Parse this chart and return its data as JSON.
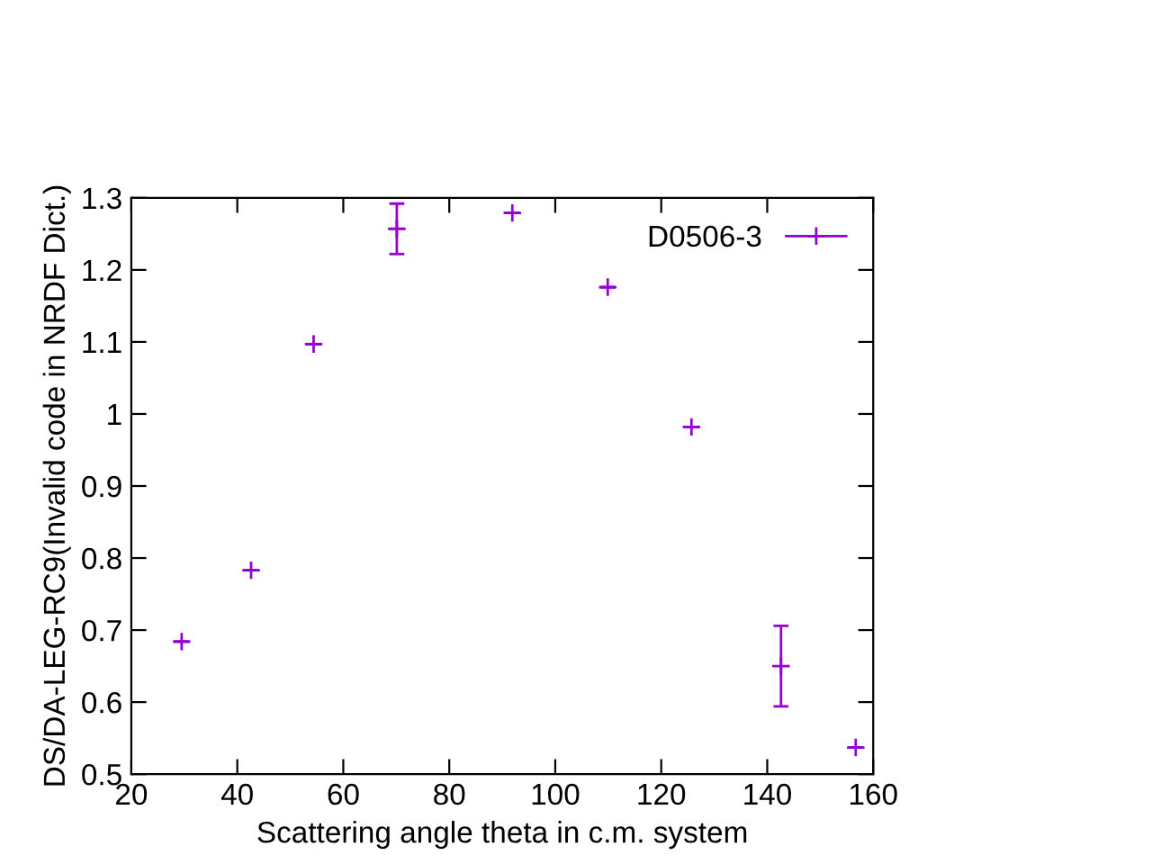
{
  "chart_data": {
    "type": "scatter",
    "xlabel": "Scattering angle theta in c.m. system",
    "ylabel": "DS/DA-LEG-RC9(Invalid code in NRDF Dict.)",
    "x": [
      29.5,
      42.6,
      54.4,
      70.1,
      91.9,
      109.9,
      125.7,
      142.6,
      156.7
    ],
    "series": [
      {
        "name": "D0506-3",
        "color": "#9400d3",
        "values": [
          0.684,
          0.783,
          1.097,
          1.257,
          1.279,
          1.176,
          0.982,
          0.65,
          0.537
        ],
        "errors": [
          null,
          null,
          null,
          0.035,
          null,
          null,
          null,
          0.056,
          null
        ]
      }
    ],
    "xlim": [
      20,
      160
    ],
    "xticks": [
      20,
      40,
      60,
      80,
      100,
      120,
      140,
      160
    ],
    "ylim": [
      0.5,
      1.3
    ],
    "yticks": [
      0.5,
      0.6,
      0.7,
      0.8,
      0.9,
      1,
      1.1,
      1.2,
      1.3
    ],
    "grid": false,
    "legend": "top right",
    "marker": "cross"
  }
}
